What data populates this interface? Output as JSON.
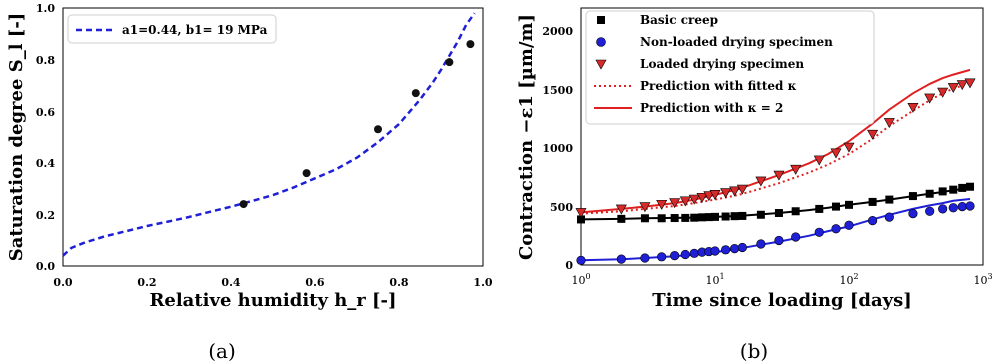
{
  "chart_data": [
    {
      "type": "scatter",
      "panel_caption": "(a)",
      "xlabel": "Relative humidity h_r [-]",
      "ylabel": "Saturation degree S_l [-]",
      "xlim": [
        0.0,
        1.0
      ],
      "ylim": [
        0.0,
        1.0
      ],
      "x_ticks": [
        "0.0",
        "0.2",
        "0.4",
        "0.6",
        "0.8",
        "1.0"
      ],
      "y_ticks": [
        "0.0",
        "0.2",
        "0.4",
        "0.6",
        "0.8",
        "1.0"
      ],
      "legend_position": "top-left",
      "grid": false,
      "series": [
        {
          "name": "a1=0.44, b1= 19 MPa",
          "kind": "dashed-line",
          "color": "#1f1fd6",
          "x": [
            0.0,
            0.02,
            0.05,
            0.1,
            0.15,
            0.2,
            0.25,
            0.3,
            0.35,
            0.4,
            0.45,
            0.5,
            0.55,
            0.6,
            0.65,
            0.7,
            0.75,
            0.8,
            0.85,
            0.88,
            0.9,
            0.92,
            0.94,
            0.96,
            0.98
          ],
          "values": [
            0.04,
            0.07,
            0.09,
            0.115,
            0.135,
            0.155,
            0.172,
            0.19,
            0.21,
            0.23,
            0.252,
            0.275,
            0.305,
            0.34,
            0.375,
            0.42,
            0.48,
            0.55,
            0.645,
            0.71,
            0.76,
            0.815,
            0.87,
            0.935,
            0.98
          ]
        },
        {
          "name": "",
          "kind": "markers",
          "color": "#111111",
          "x": [
            0.43,
            0.58,
            0.75,
            0.84,
            0.92,
            0.97
          ],
          "values": [
            0.24,
            0.36,
            0.53,
            0.67,
            0.79,
            0.86
          ]
        }
      ],
      "legend": {
        "entry": "a1=0.44, b1= 19 MPa"
      }
    },
    {
      "type": "line",
      "panel_caption": "(b)",
      "xlabel": "Time since loading [days]",
      "ylabel": "Contraction −ε1 [µm/m]",
      "xscale": "log",
      "xlim": [
        1,
        1000
      ],
      "ylim": [
        0,
        2200
      ],
      "y_ticks": [
        "0",
        "500",
        "1000",
        "1500",
        "2000"
      ],
      "x_ticks": [
        "10^0",
        "10^1",
        "10^2",
        "10^3"
      ],
      "legend_position": "top-left",
      "grid": false,
      "series": [
        {
          "name": "Basic creep",
          "kind": "square-markers",
          "color": "#000000",
          "x": [
            1,
            2,
            3,
            4,
            5,
            6,
            7,
            8,
            9,
            10,
            12,
            14,
            16,
            22,
            30,
            40,
            60,
            80,
            100,
            150,
            200,
            300,
            400,
            500,
            600,
            700,
            800
          ],
          "values": [
            390,
            395,
            400,
            400,
            402,
            403,
            405,
            408,
            410,
            412,
            415,
            418,
            420,
            430,
            445,
            460,
            480,
            500,
            515,
            540,
            560,
            590,
            610,
            630,
            645,
            660,
            670
          ]
        },
        {
          "name": "Non-loaded drying specimen",
          "kind": "circle-markers",
          "color": "#1f1fd6",
          "x": [
            1,
            2,
            3,
            4,
            5,
            6,
            7,
            8,
            9,
            10,
            12,
            14,
            16,
            22,
            30,
            40,
            60,
            80,
            100,
            150,
            200,
            300,
            400,
            500,
            600,
            700,
            800
          ],
          "values": [
            40,
            50,
            60,
            70,
            80,
            90,
            100,
            110,
            115,
            120,
            130,
            140,
            150,
            180,
            210,
            240,
            280,
            310,
            340,
            380,
            410,
            440,
            460,
            480,
            490,
            500,
            505
          ]
        },
        {
          "name": "Loaded drying specimen",
          "kind": "triangle-markers",
          "color": "#d62a2a",
          "x": [
            1,
            2,
            3,
            4,
            5,
            6,
            7,
            8,
            9,
            10,
            12,
            14,
            16,
            22,
            30,
            40,
            60,
            80,
            100,
            150,
            200,
            300,
            400,
            500,
            600,
            700,
            800
          ],
          "values": [
            450,
            480,
            500,
            520,
            535,
            550,
            565,
            580,
            595,
            605,
            620,
            635,
            650,
            720,
            770,
            820,
            900,
            960,
            1010,
            1120,
            1220,
            1350,
            1430,
            1480,
            1520,
            1545,
            1560
          ]
        },
        {
          "name": "Prediction with fitted κ",
          "kind": "dotted-line",
          "color": "#e02020",
          "x": [
            1,
            2,
            3,
            5,
            7,
            10,
            15,
            20,
            30,
            50,
            70,
            100,
            150,
            200,
            300,
            400,
            500,
            600,
            800
          ],
          "values": [
            440,
            460,
            480,
            505,
            530,
            560,
            600,
            640,
            700,
            790,
            860,
            950,
            1080,
            1190,
            1320,
            1410,
            1470,
            1510,
            1560
          ]
        },
        {
          "name": "Prediction with κ = 2",
          "kind": "solid-line",
          "color": "#e02020",
          "x": [
            1,
            2,
            3,
            5,
            7,
            10,
            15,
            20,
            30,
            50,
            70,
            100,
            150,
            200,
            300,
            400,
            500,
            600,
            800
          ],
          "values": [
            450,
            480,
            500,
            530,
            560,
            600,
            650,
            700,
            770,
            870,
            950,
            1060,
            1210,
            1330,
            1470,
            1550,
            1600,
            1630,
            1670
          ]
        },
        {
          "name": "",
          "kind": "solid-line",
          "color": "#000000",
          "x": [
            1,
            2,
            3,
            5,
            7,
            10,
            15,
            20,
            30,
            50,
            70,
            100,
            150,
            200,
            300,
            400,
            500,
            600,
            800
          ],
          "values": [
            390,
            395,
            400,
            403,
            406,
            412,
            420,
            430,
            445,
            470,
            490,
            515,
            540,
            560,
            590,
            610,
            625,
            640,
            660
          ]
        },
        {
          "name": "",
          "kind": "solid-line",
          "color": "#1f1fd6",
          "x": [
            1,
            2,
            3,
            5,
            7,
            10,
            15,
            20,
            30,
            50,
            70,
            100,
            150,
            200,
            300,
            400,
            500,
            600,
            800
          ],
          "values": [
            40,
            50,
            60,
            75,
            90,
            110,
            140,
            165,
            200,
            250,
            290,
            330,
            390,
            430,
            480,
            510,
            530,
            550,
            565
          ]
        }
      ],
      "legend": {
        "entries": [
          "Basic creep",
          "Non-loaded drying specimen",
          "Loaded drying specimen",
          "Prediction with fitted κ",
          "Prediction with κ = 2"
        ]
      }
    }
  ],
  "texts": {
    "panel_a": {
      "caption": "(a)",
      "xlabel": "Relative humidity h_r [-]",
      "ylabel": "Saturation degree S_l [-]",
      "legend": "a1=0.44, b1= 19 MPa"
    },
    "panel_b": {
      "caption": "(b)",
      "xlabel": "Time since loading [days]",
      "ylabel": "Contraction −ε1 [µm/m]",
      "legend_1": "Basic creep",
      "legend_2": "Non-loaded drying specimen",
      "legend_3": "Loaded drying specimen",
      "legend_4": "Prediction with fitted κ",
      "legend_5": "Prediction with κ = 2"
    }
  }
}
